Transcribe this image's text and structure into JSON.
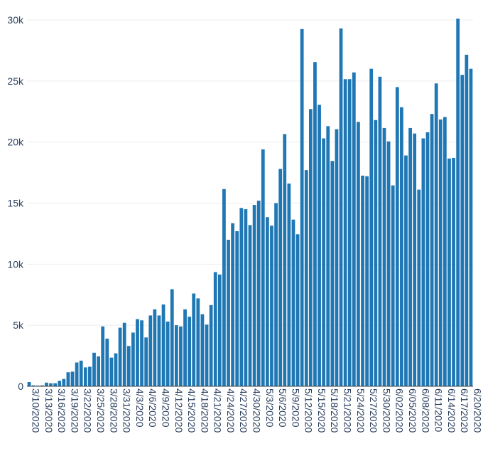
{
  "chart_data": {
    "type": "bar",
    "title": "",
    "xlabel": "",
    "ylabel": "",
    "x_start_date": "3/10/2020",
    "x_tick_every": 3,
    "x_tick_labels": [
      "3/10/2020",
      "3/13/2020",
      "3/16/2020",
      "3/19/2020",
      "3/22/2020",
      "3/25/2020",
      "3/28/2020",
      "3/31/2020",
      "4/3/2020",
      "4/6/2020",
      "4/9/2020",
      "4/12/2020",
      "4/15/2020",
      "4/18/2020",
      "4/21/2020",
      "4/24/2020",
      "4/27/2020",
      "4/30/2020",
      "5/3/2020",
      "5/6/2020",
      "5/9/2020",
      "5/12/2020",
      "5/15/2020",
      "5/18/2020",
      "5/21/2020",
      "5/24/2020",
      "5/27/2020",
      "5/30/2020",
      "6/02/2020",
      "6/05/2020",
      "6/08/2020",
      "6/11/2020",
      "6/14/2020",
      "6/17/2020",
      "6/20/2020"
    ],
    "y_ticks": [
      0,
      5000,
      10000,
      15000,
      20000,
      25000,
      30000
    ],
    "y_tick_labels": [
      "0",
      "5k",
      "10k",
      "15k",
      "20k",
      "25k",
      "30k"
    ],
    "ylim": [
      0,
      30000
    ],
    "grid": true,
    "bar_color": "#1f77b4",
    "values": [
      350,
      80,
      60,
      80,
      300,
      250,
      250,
      450,
      600,
      1150,
      1200,
      1950,
      2100,
      1550,
      1600,
      2750,
      2450,
      4900,
      3900,
      2350,
      2700,
      4800,
      5200,
      3300,
      4400,
      5500,
      5400,
      4000,
      5800,
      6300,
      5800,
      6700,
      5300,
      7950,
      5000,
      4900,
      6300,
      5700,
      7600,
      7200,
      5900,
      5050,
      6650,
      9350,
      9150,
      16150,
      12000,
      13350,
      12700,
      14600,
      14500,
      13200,
      14850,
      15200,
      19400,
      13850,
      13150,
      15000,
      17800,
      20650,
      16600,
      13650,
      12450,
      29250,
      17700,
      22700,
      26550,
      23050,
      20300,
      21300,
      18450,
      21050,
      29300,
      25150,
      25150,
      25700,
      21650,
      17250,
      17200,
      26000,
      21800,
      25350,
      21150,
      20050,
      16450,
      24500,
      22850,
      18900,
      21150,
      20700,
      16100,
      20300,
      20800,
      22300,
      24800,
      21850,
      22050,
      18650,
      18700,
      30100,
      25500,
      27150,
      26000
    ]
  }
}
